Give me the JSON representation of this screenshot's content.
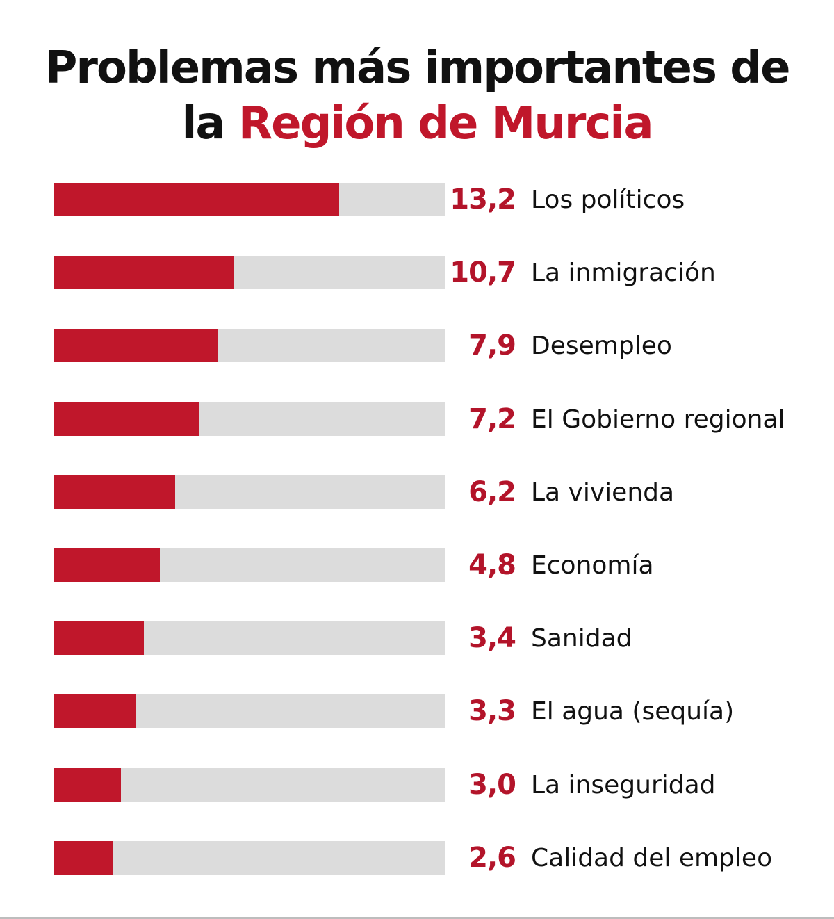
{
  "chart_data": {
    "type": "bar",
    "orientation": "horizontal",
    "title": "Problemas más importantes de la Región de Murcia",
    "title_parts": {
      "line1": "Problemas más importantes de",
      "line2_prefix": "la ",
      "line2_accent": "Región de Murcia"
    },
    "xlabel": "",
    "ylabel": "",
    "grid": false,
    "legend": "none",
    "categories": [
      "Los políticos",
      "La inmigración",
      "Desempleo",
      "El Gobierno regional",
      "La vivienda",
      "Economía",
      "Sanidad",
      "El agua (sequía)",
      "La inseguridad",
      "Calidad del empleo"
    ],
    "values": [
      13.2,
      10.7,
      7.9,
      7.2,
      6.2,
      4.8,
      3.4,
      3.3,
      3.0,
      2.6
    ],
    "value_labels": [
      "13,2",
      "10,7",
      "7,9",
      "7,2",
      "6,2",
      "4,8",
      "3,4",
      "3,3",
      "3,0",
      "2,6"
    ],
    "fill_fraction_shown": [
      0.73,
      0.46,
      0.42,
      0.37,
      0.31,
      0.27,
      0.23,
      0.21,
      0.17,
      0.15
    ]
  },
  "colors": {
    "accent": "#c0172b",
    "value_text": "#b3142a",
    "track": "#dcdcdc",
    "text": "#111111"
  }
}
